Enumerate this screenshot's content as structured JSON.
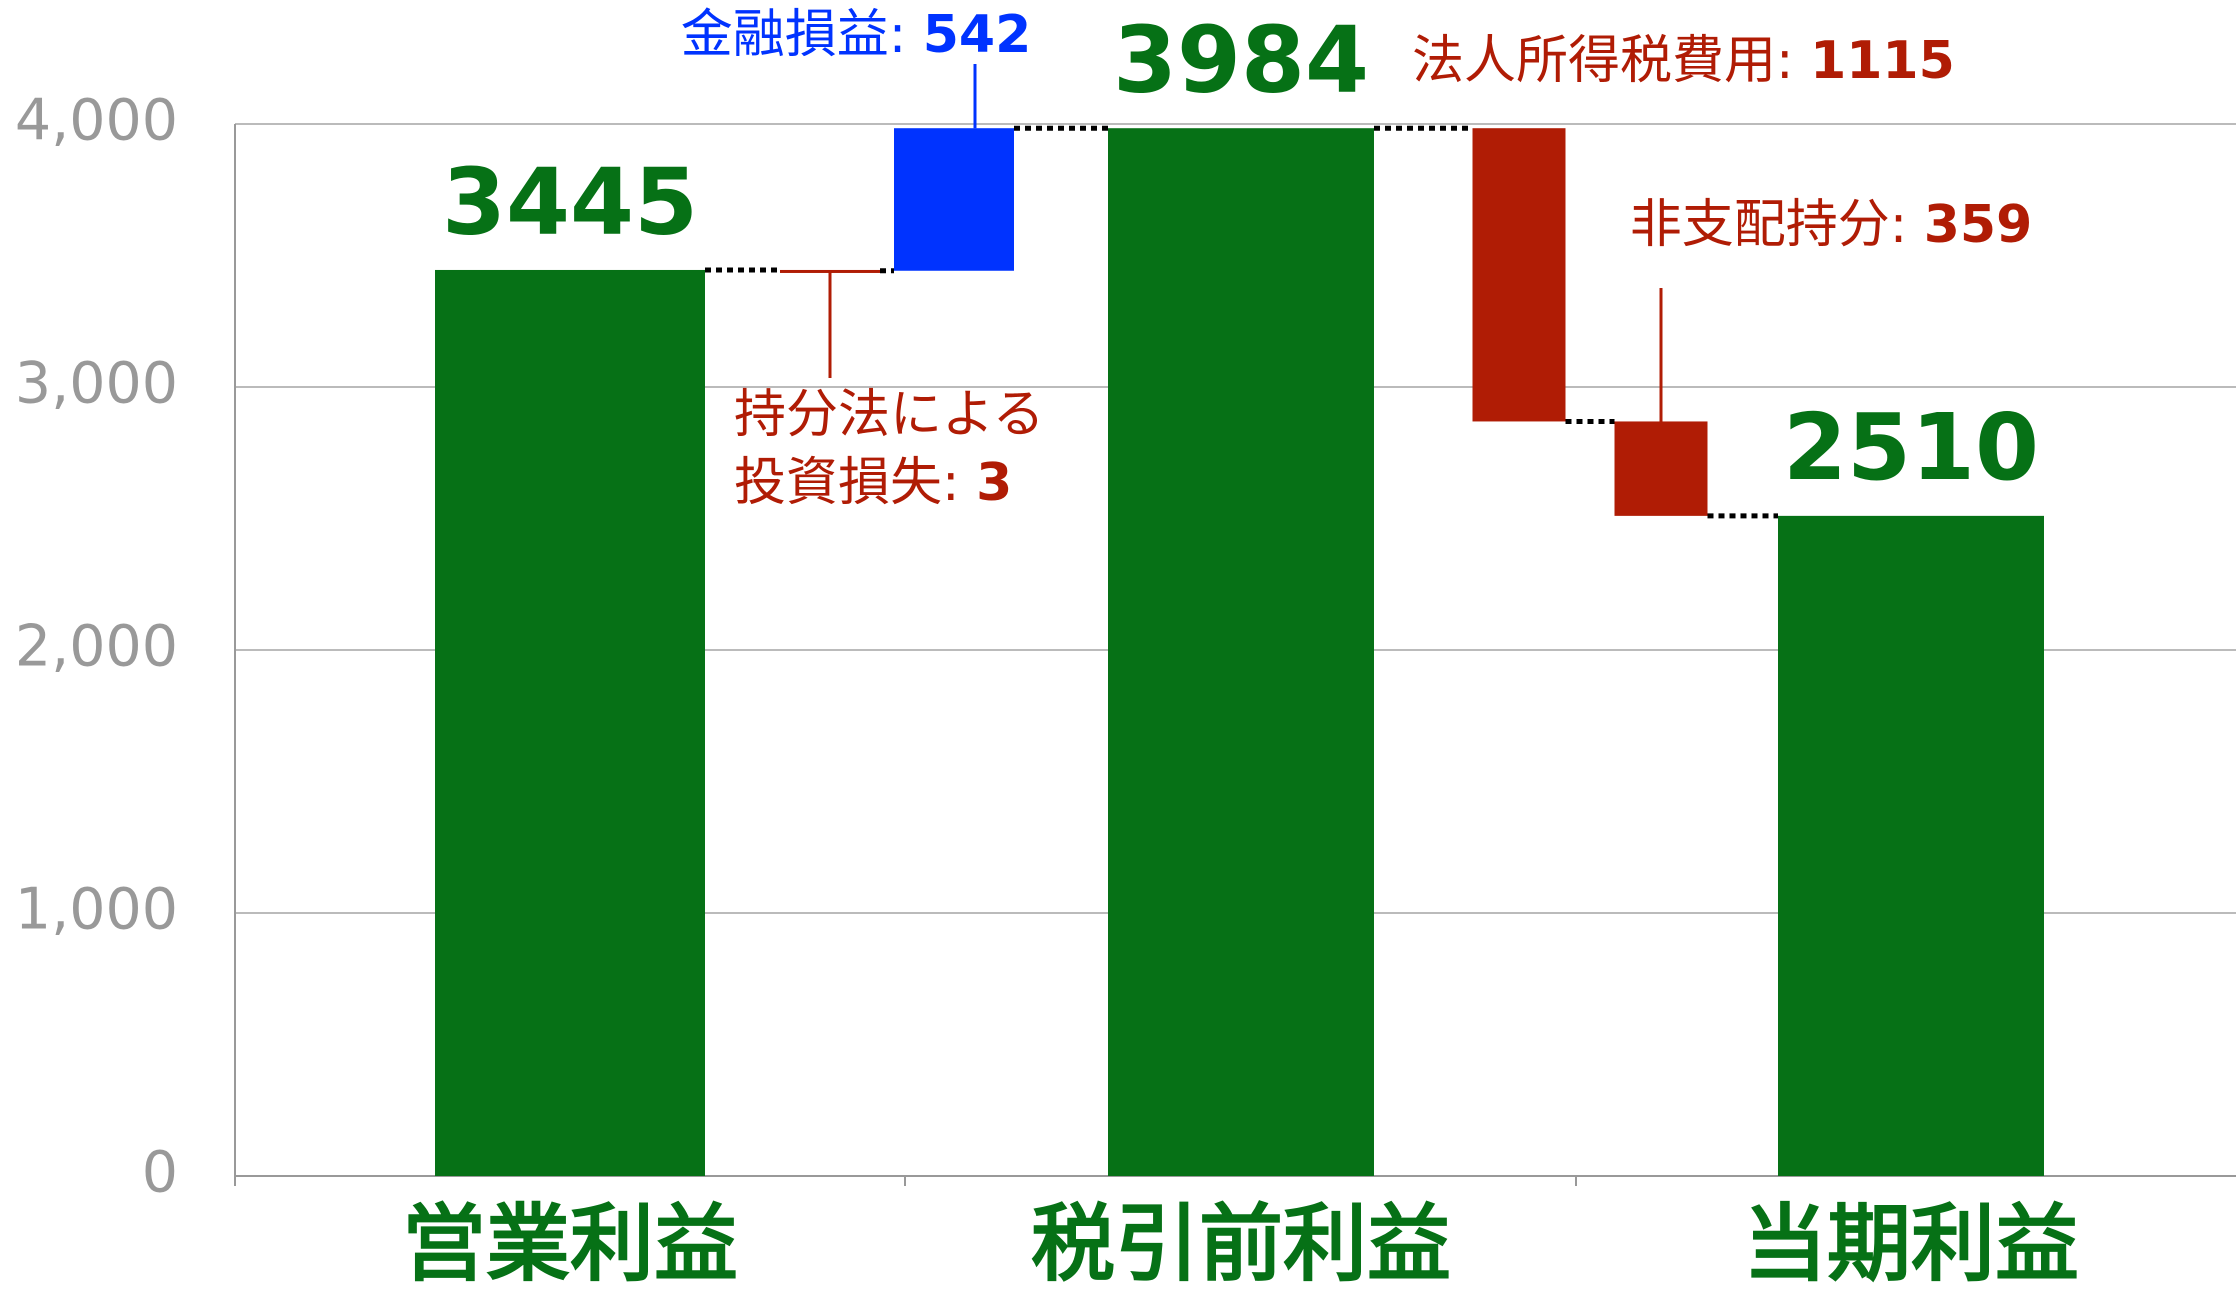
{
  "chart_data": {
    "type": "waterfall",
    "categories": [
      "営業利益",
      "持分法による投資損失:",
      "金融損益:",
      "税引前利益",
      "法人所得税費用:",
      "非支配持分:",
      "当期利益"
    ],
    "values": [
      3445,
      3,
      542,
      3984,
      1115,
      359,
      2510
    ],
    "measure": [
      "total",
      "decrease",
      "increase",
      "total",
      "decrease",
      "decrease",
      "total"
    ],
    "colors": {
      "total": "#067116",
      "increase": "#0033ff",
      "decrease": "#b01c05"
    },
    "ylim": [
      0,
      4000
    ],
    "yticks": [
      0,
      {
        "value": 1000,
        "label": "1,000"
      },
      {
        "value": 2000,
        "label": "2,000"
      },
      {
        "value": 3000,
        "label": "3,000"
      },
      {
        "value": 4000,
        "label": "4,000"
      }
    ],
    "grid": true
  }
}
